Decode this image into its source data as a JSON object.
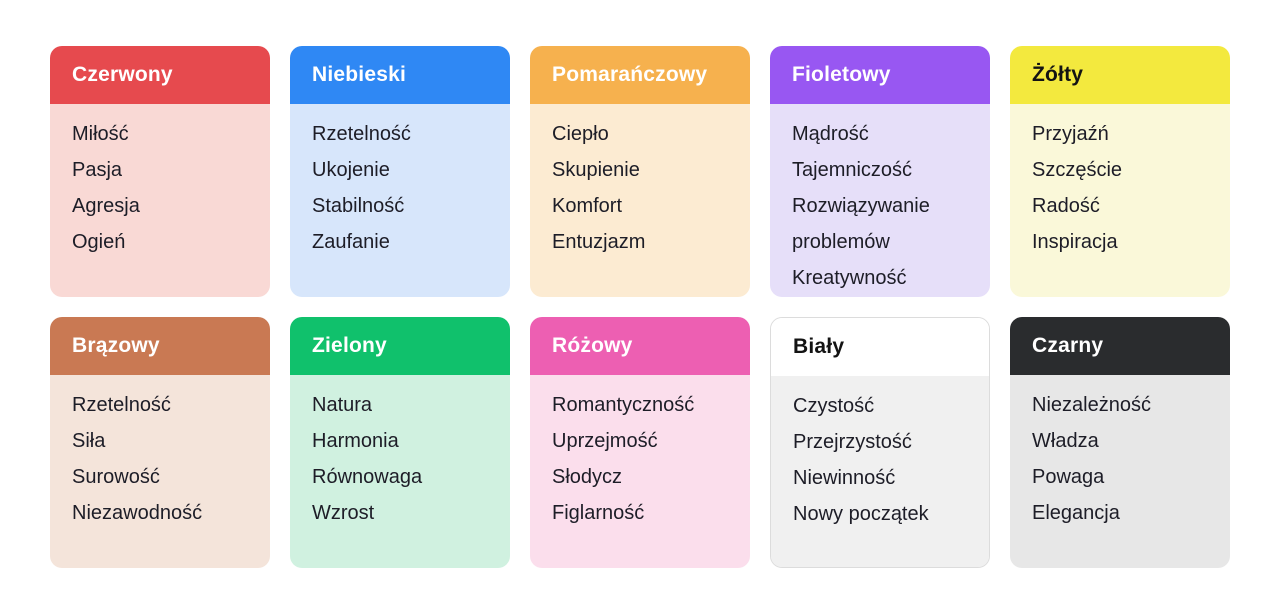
{
  "page": {
    "background": "#ffffff",
    "text_color": "#1d1d27"
  },
  "cards": [
    {
      "title": "Czerwony",
      "header_bg": "#e64a4e",
      "header_text": "#ffffff",
      "body_bg": "#f9d9d5",
      "border": null,
      "items": [
        "Miłość",
        "Pasja",
        "Agresja",
        "Ogień"
      ]
    },
    {
      "title": "Niebieski",
      "header_bg": "#2f88f4",
      "header_text": "#ffffff",
      "body_bg": "#d7e6fb",
      "border": null,
      "items": [
        "Rzetelność",
        "Ukojenie",
        "Stabilność",
        "Zaufanie"
      ]
    },
    {
      "title": "Pomarańczowy",
      "header_bg": "#f6b14e",
      "header_text": "#ffffff",
      "body_bg": "#fcebd2",
      "border": null,
      "items": [
        "Ciepło",
        "Skupienie",
        "Komfort",
        "Entuzjazm"
      ]
    },
    {
      "title": "Fioletowy",
      "header_bg": "#9857f2",
      "header_text": "#ffffff",
      "body_bg": "#e6dff9",
      "border": null,
      "items": [
        "Mądrość",
        "Tajemniczość",
        "Rozwiązywanie problemów",
        "Kreatywność"
      ]
    },
    {
      "title": "Żółty",
      "header_bg": "#f3e93e",
      "header_text": "#131313",
      "body_bg": "#faf8d9",
      "border": null,
      "items": [
        "Przyjaźń",
        "Szczęście",
        "Radość",
        "Inspiracja"
      ]
    },
    {
      "title": "Brązowy",
      "header_bg": "#c97953",
      "header_text": "#ffffff",
      "body_bg": "#f4e4da",
      "border": null,
      "items": [
        "Rzetelność",
        "Siła",
        "Surowość",
        "Niezawodność"
      ]
    },
    {
      "title": "Zielony",
      "header_bg": "#10c16c",
      "header_text": "#ffffff",
      "body_bg": "#d0f1e0",
      "border": null,
      "items": [
        "Natura",
        "Harmonia",
        "Równowaga",
        "Wzrost"
      ]
    },
    {
      "title": "Różowy",
      "header_bg": "#ed5fb2",
      "header_text": "#ffffff",
      "body_bg": "#fbdeec",
      "border": null,
      "items": [
        "Romantyczność",
        "Uprzejmość",
        "Słodycz",
        "Figlarność"
      ]
    },
    {
      "title": "Biały",
      "header_bg": "#ffffff",
      "header_text": "#131313",
      "body_bg": "#f0f0f0",
      "border": "#dcdcdc",
      "items": [
        "Czystość",
        "Przejrzystość",
        "Niewinność",
        "Nowy początek"
      ]
    },
    {
      "title": "Czarny",
      "header_bg": "#2a2c2e",
      "header_text": "#ffffff",
      "body_bg": "#e7e7e7",
      "border": null,
      "items": [
        "Niezależność",
        "Władza",
        "Powaga",
        "Elegancja"
      ]
    }
  ]
}
